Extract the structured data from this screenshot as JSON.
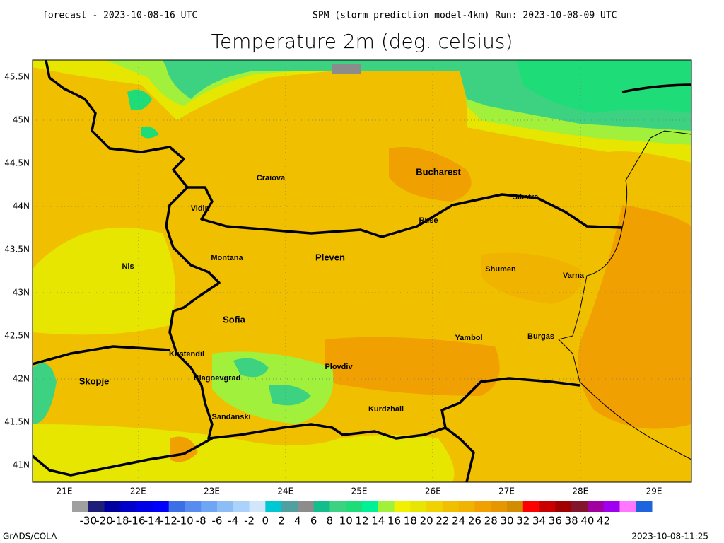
{
  "header": {
    "forecast": "forecast - 2023-10-08-16 UTC",
    "run": "SPM (storm prediction model-4km) Run: 2023-10-08-09 UTC",
    "title": "Temperature 2m (deg. celsius)"
  },
  "map": {
    "lat_labels": [
      "45.5N",
      "45N",
      "44.5N",
      "44N",
      "43.5N",
      "43N",
      "42.5N",
      "42N",
      "41.5N",
      "41N"
    ],
    "lon_labels": [
      "21E",
      "22E",
      "23E",
      "24E",
      "25E",
      "26E",
      "27E",
      "28E",
      "29E"
    ],
    "cities": [
      "Craiova",
      "Bucharest",
      "Silistra",
      "Vidin",
      "Ruse",
      "Montana",
      "Pleven",
      "Nis",
      "Shumen",
      "Varna",
      "Sofia",
      "Yambol",
      "Burgas",
      "Kustendil",
      "Plovdiv",
      "Skopje",
      "Blagoevgrad",
      "Kurdzhali",
      "Sandanski"
    ]
  },
  "colorbar": {
    "colors": [
      "#a0a0a0",
      "#1e1e78",
      "#0000a0",
      "#0000c8",
      "#0000e6",
      "#0000ff",
      "#3c6ee6",
      "#5a8cf0",
      "#6ea5f5",
      "#8cbef5",
      "#aad2fa",
      "#d2e6fa",
      "#00c8d2",
      "#50a0a0",
      "#8c8c8c",
      "#14be8c",
      "#3cd282",
      "#1edc78",
      "#00f096",
      "#a0f03c",
      "#f0f000",
      "#e6e600",
      "#f0d200",
      "#f0c000",
      "#f0b400",
      "#f0a000",
      "#e69600",
      "#d28c00",
      "#ff0000",
      "#c80000",
      "#a00000",
      "#82142d",
      "#a000a0",
      "#a000f0",
      "#ff78ff",
      "#1e64dc"
    ],
    "labels": [
      -30,
      -20,
      -18,
      -16,
      -14,
      -12,
      -10,
      -8,
      -6,
      -4,
      -2,
      0,
      2,
      4,
      6,
      8,
      10,
      12,
      14,
      16,
      18,
      20,
      22,
      24,
      26,
      28,
      30,
      32,
      34,
      36,
      38,
      40,
      42
    ]
  },
  "footer": {
    "left": "GrADS/COLA",
    "right": "2023-10-08-11:25"
  }
}
